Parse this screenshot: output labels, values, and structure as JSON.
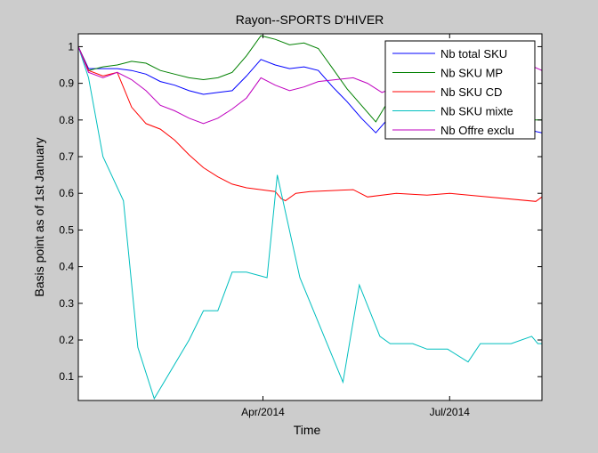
{
  "chart_data": {
    "type": "line",
    "title": "Rayon--SPORTS D'HIVER",
    "xlabel": "Time",
    "ylabel": "Basis point as of 1st January",
    "xlim": [
      "2014-01-01",
      "2014-08-15"
    ],
    "ylim": [
      0.035,
      1.035
    ],
    "y_ticks": [
      0.1,
      0.2,
      0.3,
      0.4,
      0.5,
      0.6,
      0.7,
      0.8,
      0.9,
      1
    ],
    "y_tick_labels": [
      "0.1",
      "0.2",
      "0.3",
      "0.4",
      "0.5",
      "0.6",
      "0.7",
      "0.8",
      "0.9",
      "1"
    ],
    "x_ticks": [
      "2014-04-01",
      "2014-07-01"
    ],
    "x_tick_labels": [
      "Apr/2014",
      "Jul/2014"
    ],
    "grid": false,
    "legend_position": "top-right",
    "series": [
      {
        "name": "Nb total SKU",
        "color": "#0000ff",
        "points": [
          [
            "2014-01-01",
            1.0
          ],
          [
            "2014-01-06",
            0.94
          ],
          [
            "2014-01-13",
            0.94
          ],
          [
            "2014-01-20",
            0.94
          ],
          [
            "2014-01-27",
            0.935
          ],
          [
            "2014-02-03",
            0.925
          ],
          [
            "2014-02-10",
            0.905
          ],
          [
            "2014-02-17",
            0.895
          ],
          [
            "2014-02-24",
            0.88
          ],
          [
            "2014-03-03",
            0.87
          ],
          [
            "2014-03-10",
            0.875
          ],
          [
            "2014-03-17",
            0.88
          ],
          [
            "2014-03-24",
            0.92
          ],
          [
            "2014-03-31",
            0.965
          ],
          [
            "2014-04-07",
            0.95
          ],
          [
            "2014-04-14",
            0.94
          ],
          [
            "2014-04-21",
            0.945
          ],
          [
            "2014-04-28",
            0.935
          ],
          [
            "2014-05-05",
            0.89
          ],
          [
            "2014-05-12",
            0.85
          ],
          [
            "2014-05-19",
            0.805
          ],
          [
            "2014-05-26",
            0.765
          ],
          [
            "2014-06-02",
            0.81
          ],
          [
            "2014-06-05",
            0.865
          ],
          [
            "2014-06-08",
            0.85
          ],
          [
            "2014-06-16",
            0.855
          ],
          [
            "2014-06-23",
            0.885
          ],
          [
            "2014-08-01",
            0.885
          ],
          [
            "2014-08-11",
            0.77
          ],
          [
            "2014-08-15",
            0.765
          ]
        ]
      },
      {
        "name": "Nb SKU MP",
        "color": "#008000",
        "points": [
          [
            "2014-01-01",
            1.0
          ],
          [
            "2014-01-06",
            0.935
          ],
          [
            "2014-01-13",
            0.945
          ],
          [
            "2014-01-20",
            0.95
          ],
          [
            "2014-01-27",
            0.96
          ],
          [
            "2014-02-03",
            0.955
          ],
          [
            "2014-02-10",
            0.935
          ],
          [
            "2014-02-17",
            0.925
          ],
          [
            "2014-02-24",
            0.915
          ],
          [
            "2014-03-03",
            0.91
          ],
          [
            "2014-03-10",
            0.915
          ],
          [
            "2014-03-17",
            0.93
          ],
          [
            "2014-03-24",
            0.975
          ],
          [
            "2014-03-31",
            1.03
          ],
          [
            "2014-04-07",
            1.02
          ],
          [
            "2014-04-14",
            1.005
          ],
          [
            "2014-04-21",
            1.01
          ],
          [
            "2014-04-28",
            0.995
          ],
          [
            "2014-05-05",
            0.94
          ],
          [
            "2014-05-12",
            0.885
          ],
          [
            "2014-05-19",
            0.84
          ],
          [
            "2014-05-26",
            0.795
          ],
          [
            "2014-06-02",
            0.86
          ],
          [
            "2014-06-05",
            0.92
          ],
          [
            "2014-06-08",
            0.9
          ],
          [
            "2014-06-16",
            0.905
          ],
          [
            "2014-06-23",
            0.935
          ],
          [
            "2014-08-01",
            0.935
          ],
          [
            "2014-08-11",
            0.8
          ],
          [
            "2014-08-15",
            0.8
          ]
        ]
      },
      {
        "name": "Nb SKU CD",
        "color": "#ff0000",
        "points": [
          [
            "2014-01-01",
            1.0
          ],
          [
            "2014-01-06",
            0.935
          ],
          [
            "2014-01-13",
            0.92
          ],
          [
            "2014-01-20",
            0.93
          ],
          [
            "2014-01-27",
            0.835
          ],
          [
            "2014-02-03",
            0.79
          ],
          [
            "2014-02-10",
            0.775
          ],
          [
            "2014-02-17",
            0.745
          ],
          [
            "2014-02-24",
            0.705
          ],
          [
            "2014-03-03",
            0.67
          ],
          [
            "2014-03-10",
            0.645
          ],
          [
            "2014-03-17",
            0.625
          ],
          [
            "2014-03-24",
            0.615
          ],
          [
            "2014-03-31",
            0.61
          ],
          [
            "2014-04-07",
            0.605
          ],
          [
            "2014-04-10",
            0.585
          ],
          [
            "2014-04-12",
            0.58
          ],
          [
            "2014-04-17",
            0.6
          ],
          [
            "2014-04-24",
            0.605
          ],
          [
            "2014-05-15",
            0.61
          ],
          [
            "2014-05-22",
            0.59
          ],
          [
            "2014-06-05",
            0.6
          ],
          [
            "2014-06-20",
            0.595
          ],
          [
            "2014-07-01",
            0.6
          ],
          [
            "2014-08-12",
            0.578
          ],
          [
            "2014-08-15",
            0.59
          ]
        ]
      },
      {
        "name": "Nb SKU mixte",
        "color": "#00bfbf",
        "points": [
          [
            "2014-01-01",
            1.0
          ],
          [
            "2014-01-06",
            0.915
          ],
          [
            "2014-01-13",
            0.7
          ],
          [
            "2014-01-23",
            0.58
          ],
          [
            "2014-01-30",
            0.18
          ],
          [
            "2014-02-07",
            0.04
          ],
          [
            "2014-02-24",
            0.2
          ],
          [
            "2014-03-03",
            0.28
          ],
          [
            "2014-03-10",
            0.28
          ],
          [
            "2014-03-17",
            0.385
          ],
          [
            "2014-03-24",
            0.385
          ],
          [
            "2014-04-03",
            0.37
          ],
          [
            "2014-04-08",
            0.65
          ],
          [
            "2014-04-19",
            0.37
          ],
          [
            "2014-05-10",
            0.085
          ],
          [
            "2014-05-18",
            0.35
          ],
          [
            "2014-05-28",
            0.21
          ],
          [
            "2014-06-02",
            0.19
          ],
          [
            "2014-06-13",
            0.19
          ],
          [
            "2014-06-20",
            0.175
          ],
          [
            "2014-06-30",
            0.175
          ],
          [
            "2014-07-10",
            0.14
          ],
          [
            "2014-07-16",
            0.19
          ],
          [
            "2014-07-31",
            0.19
          ],
          [
            "2014-08-10",
            0.21
          ],
          [
            "2014-08-13",
            0.19
          ],
          [
            "2014-08-15",
            0.19
          ]
        ]
      },
      {
        "name": "Nb Offre exclu",
        "color": "#bf00bf",
        "points": [
          [
            "2014-01-01",
            1.0
          ],
          [
            "2014-01-06",
            0.93
          ],
          [
            "2014-01-13",
            0.915
          ],
          [
            "2014-01-20",
            0.93
          ],
          [
            "2014-01-27",
            0.91
          ],
          [
            "2014-02-03",
            0.88
          ],
          [
            "2014-02-10",
            0.84
          ],
          [
            "2014-02-17",
            0.825
          ],
          [
            "2014-02-24",
            0.805
          ],
          [
            "2014-03-03",
            0.79
          ],
          [
            "2014-03-10",
            0.805
          ],
          [
            "2014-03-17",
            0.83
          ],
          [
            "2014-03-24",
            0.86
          ],
          [
            "2014-03-31",
            0.915
          ],
          [
            "2014-04-07",
            0.895
          ],
          [
            "2014-04-14",
            0.88
          ],
          [
            "2014-04-21",
            0.89
          ],
          [
            "2014-04-28",
            0.905
          ],
          [
            "2014-05-15",
            0.915
          ],
          [
            "2014-05-22",
            0.9
          ],
          [
            "2014-05-29",
            0.875
          ],
          [
            "2014-06-05",
            0.89
          ],
          [
            "2014-06-08",
            0.955
          ],
          [
            "2014-06-16",
            0.96
          ],
          [
            "2014-06-23",
            0.97
          ],
          [
            "2014-08-01",
            0.97
          ],
          [
            "2014-08-15",
            0.935
          ]
        ]
      }
    ]
  }
}
